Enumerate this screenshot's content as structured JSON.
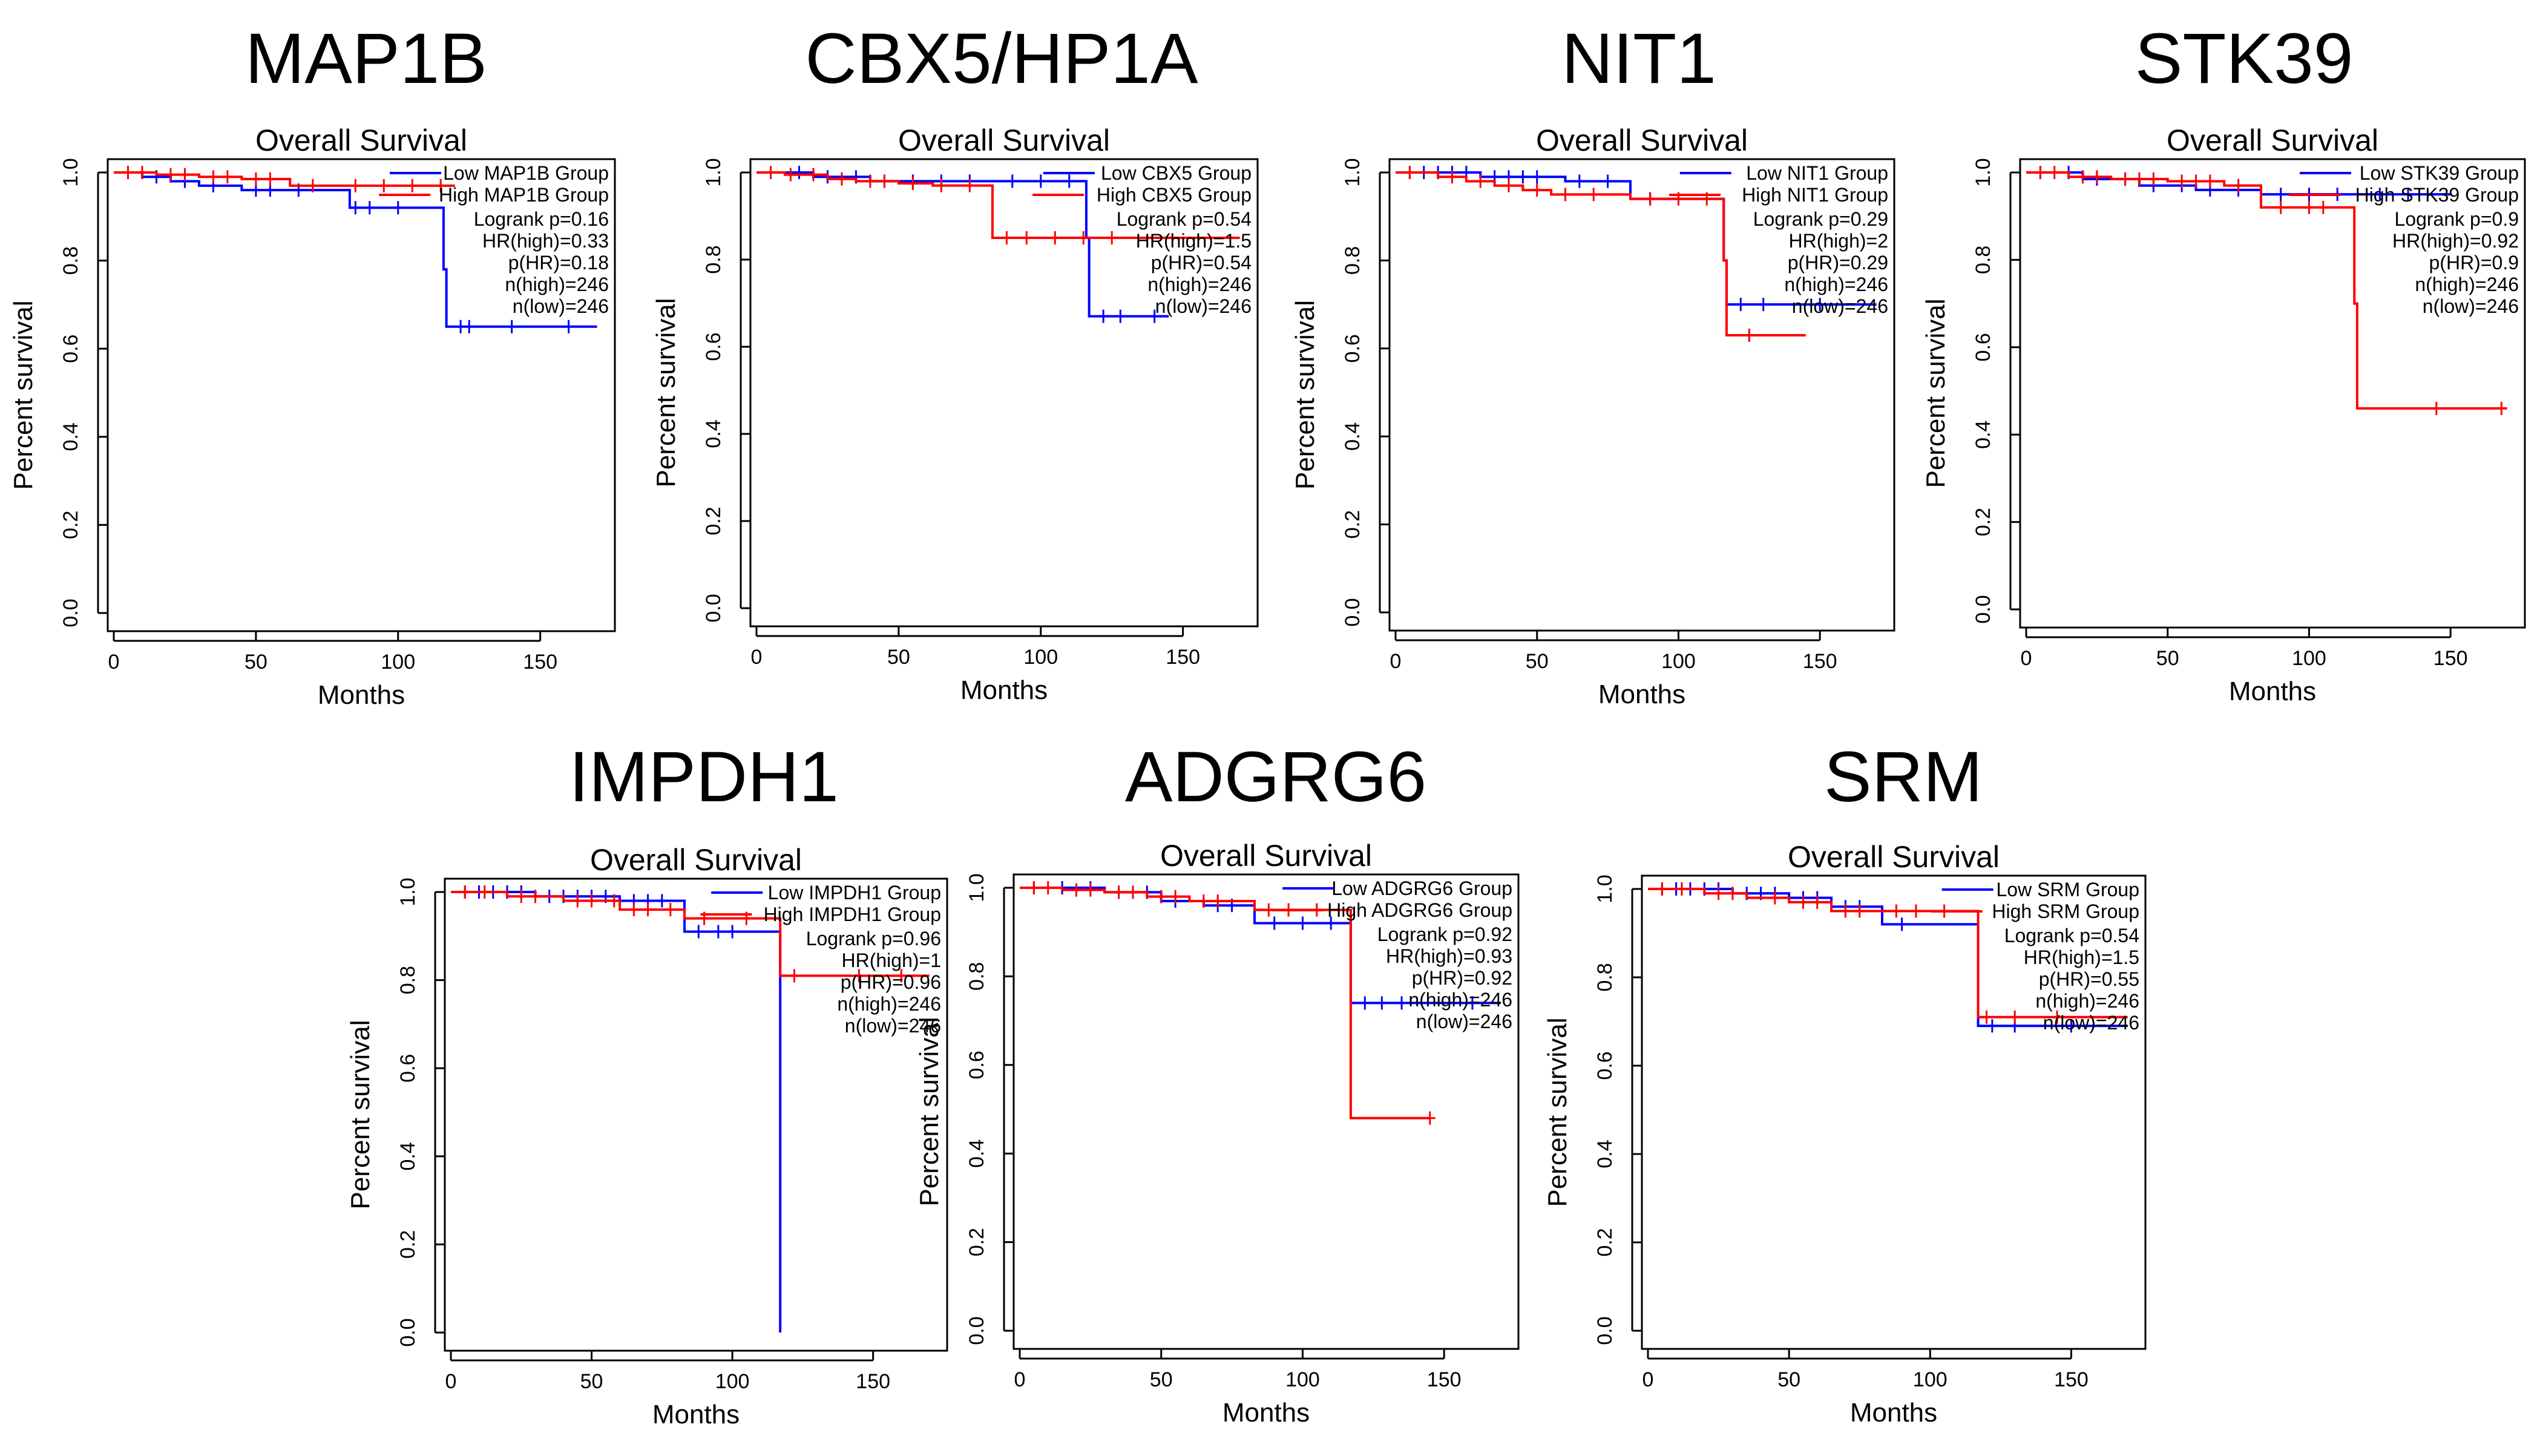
{
  "figure": {
    "panel_title": "Overall Survival",
    "xlabel": "Months",
    "ylabel": "Percent survival",
    "x_ticks": [
      "0",
      "50",
      "100",
      "150"
    ],
    "y_ticks": [
      "0.0",
      "0.2",
      "0.4",
      "0.6",
      "0.8",
      "1.0"
    ],
    "colors": {
      "low": "#0000ff",
      "high": "#ff0000",
      "axis": "#000000"
    }
  },
  "chart_data": [
    {
      "type": "line",
      "gene": "MAP1B",
      "title": "Overall Survival",
      "xlabel": "Months",
      "ylabel": "Percent survival",
      "xlim": [
        0,
        172
      ],
      "ylim": [
        0,
        1
      ],
      "legend": [
        "Low MAP1B Group",
        "High MAP1B Group"
      ],
      "stats": [
        "Logrank p=0.16",
        "HR(high)=0.33",
        "p(HR)=0.18",
        "n(high)=246",
        "n(low)=246"
      ],
      "series": [
        {
          "name": "Low MAP1B Group",
          "color": "#0000ff",
          "x": [
            0,
            10,
            20,
            30,
            45,
            60,
            83,
            116,
            117,
            170
          ],
          "y": [
            1.0,
            0.99,
            0.98,
            0.97,
            0.96,
            0.96,
            0.92,
            0.78,
            0.65,
            0.65
          ],
          "censor_x": [
            5,
            15,
            25,
            35,
            50,
            55,
            65,
            85,
            90,
            100,
            122,
            125,
            140,
            160
          ]
        },
        {
          "name": "High MAP1B Group",
          "color": "#ff0000",
          "x": [
            0,
            15,
            30,
            45,
            62,
            80,
            100,
            120
          ],
          "y": [
            1.0,
            0.995,
            0.99,
            0.985,
            0.97,
            0.97,
            0.97,
            0.97
          ],
          "censor_x": [
            5,
            10,
            20,
            25,
            35,
            40,
            50,
            55,
            70,
            85,
            95,
            105,
            115
          ]
        }
      ]
    },
    {
      "type": "line",
      "gene": "CBX5/HP1A",
      "title": "Overall Survival",
      "xlabel": "Months",
      "ylabel": "Percent survival",
      "xlim": [
        0,
        172
      ],
      "ylim": [
        0,
        1
      ],
      "legend": [
        "Low CBX5 Group",
        "High CBX5 Group"
      ],
      "stats": [
        "Logrank p=0.54",
        "HR(high)=1.5",
        "p(HR)=0.54",
        "n(high)=246",
        "n(low)=246"
      ],
      "series": [
        {
          "name": "Low CBX5 Group",
          "color": "#0000ff",
          "x": [
            0,
            20,
            40,
            60,
            83,
            116,
            117,
            145
          ],
          "y": [
            1.0,
            0.99,
            0.98,
            0.98,
            0.98,
            0.85,
            0.67,
            0.67
          ],
          "censor_x": [
            5,
            15,
            25,
            35,
            45,
            55,
            65,
            75,
            90,
            100,
            110,
            122,
            128,
            140
          ]
        },
        {
          "name": "High CBX5 Group",
          "color": "#ff0000",
          "x": [
            0,
            10,
            25,
            35,
            50,
            62,
            80,
            83,
            170
          ],
          "y": [
            1.0,
            0.995,
            0.985,
            0.98,
            0.975,
            0.97,
            0.97,
            0.85,
            0.85
          ],
          "censor_x": [
            5,
            12,
            20,
            30,
            40,
            45,
            55,
            65,
            75,
            88,
            95,
            105,
            115,
            125
          ]
        }
      ]
    },
    {
      "type": "line",
      "gene": "NIT1",
      "title": "Overall Survival",
      "xlabel": "Months",
      "ylabel": "Percent survival",
      "xlim": [
        0,
        172
      ],
      "ylim": [
        0,
        1
      ],
      "legend": [
        "Low NIT1 Group",
        "High NIT1 Group"
      ],
      "stats": [
        "Logrank p=0.29",
        "HR(high)=2",
        "p(HR)=0.29",
        "n(high)=246",
        "n(low)=246"
      ],
      "series": [
        {
          "name": "Low NIT1 Group",
          "color": "#0000ff",
          "x": [
            0,
            30,
            60,
            83,
            116,
            117,
            170
          ],
          "y": [
            1.0,
            0.99,
            0.98,
            0.94,
            0.8,
            0.7,
            0.7
          ],
          "censor_x": [
            5,
            10,
            15,
            20,
            25,
            35,
            40,
            45,
            50,
            65,
            75,
            90,
            122,
            130,
            150
          ]
        },
        {
          "name": "High NIT1 Group",
          "color": "#ff0000",
          "x": [
            0,
            15,
            25,
            35,
            45,
            55,
            83,
            116,
            117,
            145
          ],
          "y": [
            1.0,
            0.99,
            0.98,
            0.97,
            0.96,
            0.95,
            0.94,
            0.8,
            0.63,
            0.63
          ],
          "censor_x": [
            5,
            20,
            30,
            40,
            50,
            60,
            70,
            90,
            100,
            110,
            125
          ]
        }
      ]
    },
    {
      "type": "line",
      "gene": "STK39",
      "title": "Overall Survival",
      "xlabel": "Months",
      "ylabel": "Percent survival",
      "xlim": [
        0,
        172
      ],
      "ylim": [
        0,
        1
      ],
      "legend": [
        "Low STK39 Group",
        "High STK39 Group"
      ],
      "stats": [
        "Logrank p=0.9",
        "HR(high)=0.92",
        "p(HR)=0.9",
        "n(high)=246",
        "n(low)=246"
      ],
      "series": [
        {
          "name": "Low STK39 Group",
          "color": "#0000ff",
          "x": [
            0,
            20,
            40,
            60,
            83,
            116,
            150
          ],
          "y": [
            1.0,
            0.985,
            0.97,
            0.96,
            0.95,
            0.95,
            0.95
          ],
          "censor_x": [
            5,
            15,
            25,
            35,
            45,
            55,
            65,
            75,
            90,
            100,
            110,
            125,
            135
          ]
        },
        {
          "name": "High STK39 Group",
          "color": "#ff0000",
          "x": [
            0,
            15,
            30,
            50,
            70,
            83,
            115,
            116,
            117,
            170
          ],
          "y": [
            1.0,
            0.99,
            0.985,
            0.98,
            0.97,
            0.92,
            0.92,
            0.7,
            0.46,
            0.46
          ],
          "censor_x": [
            5,
            10,
            20,
            25,
            35,
            40,
            45,
            55,
            60,
            65,
            75,
            90,
            100,
            105,
            145,
            168
          ]
        }
      ]
    },
    {
      "type": "line",
      "gene": "IMPDH1",
      "title": "Overall Survival",
      "xlabel": "Months",
      "ylabel": "Percent survival",
      "xlim": [
        0,
        172
      ],
      "ylim": [
        0,
        1
      ],
      "legend": [
        "Low IMPDH1 Group",
        "High IMPDH1 Group"
      ],
      "stats": [
        "Logrank p=0.96",
        "HR(high)=1",
        "p(HR)=0.96",
        "n(high)=246",
        "n(low)=246"
      ],
      "series": [
        {
          "name": "Low IMPDH1 Group",
          "color": "#0000ff",
          "x": [
            0,
            30,
            60,
            83,
            116,
            117
          ],
          "y": [
            1.0,
            0.99,
            0.98,
            0.91,
            0.91,
            0.0
          ],
          "censor_x": [
            5,
            10,
            15,
            20,
            25,
            35,
            40,
            45,
            50,
            55,
            65,
            70,
            75,
            88,
            95,
            100
          ]
        },
        {
          "name": "High IMPDH1 Group",
          "color": "#ff0000",
          "x": [
            0,
            20,
            40,
            60,
            83,
            116,
            117,
            170
          ],
          "y": [
            1.0,
            0.99,
            0.98,
            0.96,
            0.94,
            0.94,
            0.81,
            0.81
          ],
          "censor_x": [
            5,
            12,
            25,
            30,
            45,
            50,
            58,
            65,
            70,
            78,
            90,
            105,
            122,
            145,
            160
          ]
        }
      ]
    },
    {
      "type": "line",
      "gene": "ADGRG6",
      "title": "Overall Survival",
      "xlabel": "Months",
      "ylabel": "Percent survival",
      "xlim": [
        0,
        172
      ],
      "ylim": [
        0,
        1
      ],
      "legend": [
        "Low ADGRG6 Group",
        "High ADGRG6 Group"
      ],
      "stats": [
        "Logrank p=0.92",
        "HR(high)=0.93",
        "p(HR)=0.92",
        "n(high)=246",
        "n(low)=246"
      ],
      "series": [
        {
          "name": "Low ADGRG6 Group",
          "color": "#0000ff",
          "x": [
            0,
            30,
            50,
            65,
            83,
            116,
            117,
            170
          ],
          "y": [
            1.0,
            0.99,
            0.97,
            0.96,
            0.92,
            0.92,
            0.74,
            0.74
          ],
          "censor_x": [
            5,
            15,
            25,
            35,
            45,
            55,
            70,
            75,
            90,
            100,
            110,
            122,
            128,
            135,
            160
          ]
        },
        {
          "name": "High ADGRG6 Group",
          "color": "#ff0000",
          "x": [
            0,
            15,
            30,
            45,
            60,
            83,
            116,
            117,
            145
          ],
          "y": [
            1.0,
            0.995,
            0.99,
            0.98,
            0.97,
            0.95,
            0.95,
            0.48,
            0.48
          ],
          "censor_x": [
            5,
            10,
            20,
            25,
            35,
            40,
            50,
            55,
            65,
            70,
            88,
            95,
            105,
            145
          ]
        }
      ]
    },
    {
      "type": "line",
      "gene": "SRM",
      "title": "Overall Survival",
      "xlabel": "Months",
      "ylabel": "Percent survival",
      "xlim": [
        0,
        172
      ],
      "ylim": [
        0,
        1
      ],
      "legend": [
        "Low SRM Group",
        "High SRM Group"
      ],
      "stats": [
        "Logrank p=0.54",
        "HR(high)=1.5",
        "p(HR)=0.55",
        "n(high)=246",
        "n(low)=246"
      ],
      "series": [
        {
          "name": "Low SRM Group",
          "color": "#0000ff",
          "x": [
            0,
            30,
            50,
            65,
            83,
            116,
            117,
            170
          ],
          "y": [
            1.0,
            0.99,
            0.98,
            0.96,
            0.92,
            0.92,
            0.69,
            0.69
          ],
          "censor_x": [
            5,
            10,
            15,
            20,
            25,
            35,
            40,
            45,
            55,
            60,
            70,
            75,
            90,
            122,
            130,
            150
          ]
        },
        {
          "name": "High SRM Group",
          "color": "#ff0000",
          "x": [
            0,
            20,
            35,
            50,
            65,
            83,
            116,
            117,
            170
          ],
          "y": [
            1.0,
            0.99,
            0.98,
            0.97,
            0.95,
            0.95,
            0.95,
            0.71,
            0.71
          ],
          "censor_x": [
            5,
            12,
            25,
            30,
            45,
            55,
            60,
            70,
            75,
            88,
            95,
            105,
            120,
            130,
            145
          ]
        }
      ]
    }
  ]
}
